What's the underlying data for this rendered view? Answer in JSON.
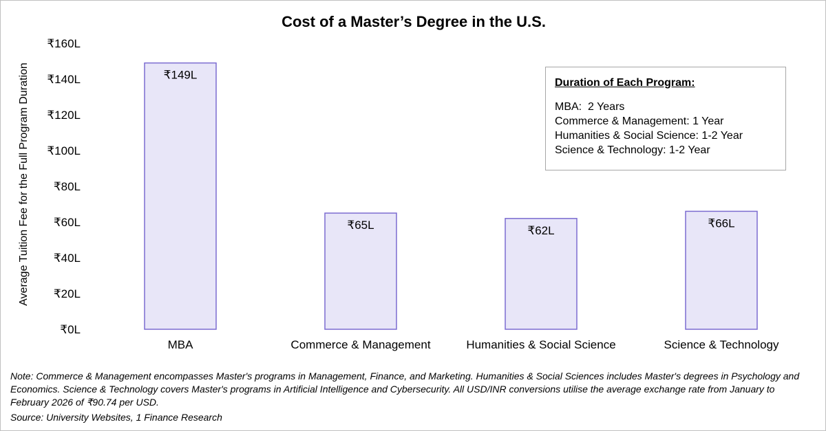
{
  "chart_data": {
    "type": "bar",
    "title": "Cost of a Master’s Degree in the U.S.",
    "ylabel": "Average Tuition Fee for the Full Program Duration",
    "xlabel": "",
    "categories": [
      "MBA",
      "Commerce & Management",
      "Humanities & Social Science",
      "Science & Technology"
    ],
    "values": [
      149,
      65,
      62,
      66
    ],
    "data_labels": [
      "₹149L",
      "₹65L",
      "₹62L",
      "₹66L"
    ],
    "ylim": [
      0,
      160
    ],
    "y_ticks": [
      0,
      20,
      40,
      60,
      80,
      100,
      120,
      140,
      160
    ],
    "y_tick_labels": [
      "₹0L",
      "₹20L",
      "₹40L",
      "₹60L",
      "₹80L",
      "₹100L",
      "₹120L",
      "₹140L",
      "₹160L"
    ],
    "grid": false,
    "bar_fill": "#e8e6f8",
    "bar_stroke": "#7b6bd0"
  },
  "legend_box": {
    "heading": "Duration of Each Program:",
    "lines": [
      "MBA:  2 Years",
      "Commerce & Management: 1 Year",
      "Humanities & Social Science: 1-2 Year",
      "Science & Technology: 1-2 Year"
    ]
  },
  "note": "Note: Commerce & Management encompasses Master's programs in Management, Finance, and Marketing. Humanities & Social Sciences includes Master's degrees in Psychology and Economics. Science & Technology covers Master's programs in Artificial Intelligence and Cybersecurity. All USD/INR conversions utilise the average exchange rate from January to February 2026 of ₹90.74 per USD.",
  "source": "Source: University Websites, 1 Finance Research"
}
